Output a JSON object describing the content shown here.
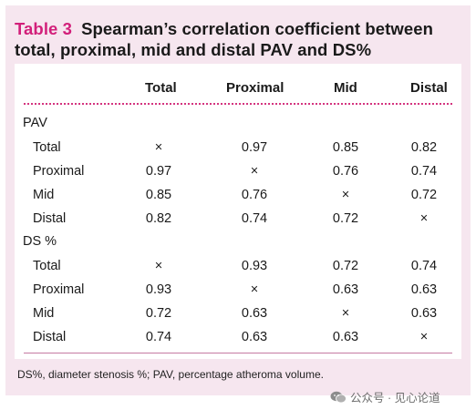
{
  "title": {
    "label": "Table 3",
    "text": "Spearman’s correlation coefficient between total, proximal, mid and distal PAV and DS%"
  },
  "columns": [
    "Total",
    "Proximal",
    "Mid",
    "Distal"
  ],
  "groups": [
    {
      "name": "PAV",
      "rows": [
        {
          "label": "Total",
          "values": [
            "×",
            "0.97",
            "0.85",
            "0.82"
          ]
        },
        {
          "label": "Proximal",
          "values": [
            "0.97",
            "×",
            "0.76",
            "0.74"
          ]
        },
        {
          "label": "Mid",
          "values": [
            "0.85",
            "0.76",
            "×",
            "0.72"
          ]
        },
        {
          "label": "Distal",
          "values": [
            "0.82",
            "0.74",
            "0.72",
            "×"
          ]
        }
      ]
    },
    {
      "name": "DS %",
      "rows": [
        {
          "label": "Total",
          "values": [
            "×",
            "0.93",
            "0.72",
            "0.74"
          ]
        },
        {
          "label": "Proximal",
          "values": [
            "0.93",
            "×",
            "0.63",
            "0.63"
          ]
        },
        {
          "label": "Mid",
          "values": [
            "0.72",
            "0.63",
            "×",
            "0.63"
          ]
        },
        {
          "label": "Distal",
          "values": [
            "0.74",
            "0.63",
            "0.63",
            "×"
          ]
        }
      ]
    }
  ],
  "footnote": "DS%, diameter stenosis %; PAV, percentage atheroma volume.",
  "watermark": {
    "text": "公众号 · 见心论道",
    "icon": "wechat-icon"
  }
}
